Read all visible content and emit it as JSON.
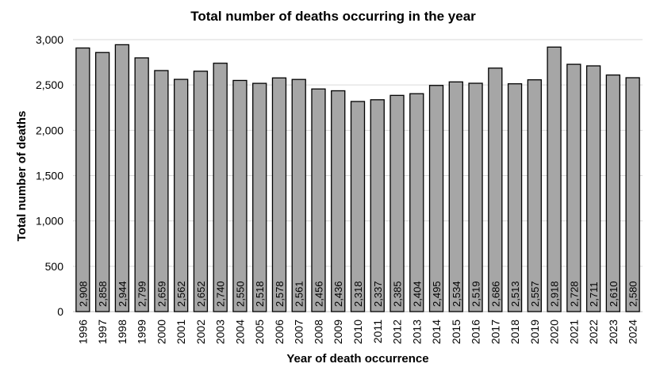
{
  "chart_data": {
    "type": "bar",
    "title": "Total number of deaths occurring in the year",
    "xlabel": "Year of death occurrence",
    "ylabel": "Total number of deaths",
    "ylim": [
      0,
      3000
    ],
    "yticks": [
      0,
      500,
      1000,
      1500,
      2000,
      2500,
      3000
    ],
    "ytick_labels": [
      "0",
      "500",
      "1,000",
      "1,500",
      "2,000",
      "2,500",
      "3,000"
    ],
    "grid": "horizontal",
    "bar_color": "#a6a6a6",
    "bar_edge_color": "#000000",
    "gridline_color": "#d9d9d9",
    "categories": [
      "1996",
      "1997",
      "1998",
      "1999",
      "2000",
      "2001",
      "2002",
      "2003",
      "2004",
      "2005",
      "2006",
      "2007",
      "2008",
      "2009",
      "2010",
      "2011",
      "2012",
      "2013",
      "2014",
      "2015",
      "2016",
      "2017",
      "2018",
      "2019",
      "2020",
      "2021",
      "2022",
      "2023",
      "2024"
    ],
    "values": [
      2908,
      2858,
      2944,
      2799,
      2659,
      2562,
      2652,
      2740,
      2550,
      2518,
      2578,
      2561,
      2456,
      2436,
      2318,
      2337,
      2385,
      2404,
      2495,
      2534,
      2519,
      2686,
      2513,
      2557,
      2918,
      2728,
      2711,
      2610,
      2580
    ],
    "data_labels": [
      "2,908",
      "2,858",
      "2,944",
      "2,799",
      "2,659",
      "2,562",
      "2,652",
      "2,740",
      "2,550",
      "2,518",
      "2,578",
      "2,561",
      "2,456",
      "2,436",
      "2,318",
      "2,337",
      "2,385",
      "2,404",
      "2,495",
      "2,534",
      "2,519",
      "2,686",
      "2,513",
      "2,557",
      "2,918",
      "2,728",
      "2,711",
      "2,610",
      "2,580"
    ]
  }
}
